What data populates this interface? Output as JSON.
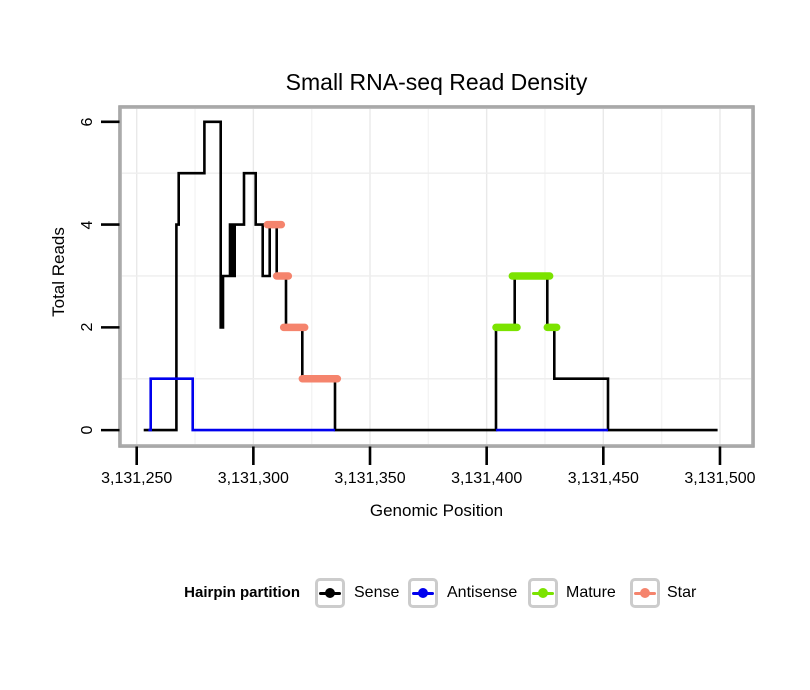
{
  "title": "Small RNA-seq Read Density",
  "axes": {
    "x": {
      "label": "Genomic Position",
      "tick_labels": [
        "3,131,250",
        "3,131,300",
        "3,131,350",
        "3,131,400",
        "3,131,450",
        "3,131,500"
      ]
    },
    "y": {
      "label": "Total Reads",
      "tick_labels": [
        "0",
        "2",
        "4",
        "6"
      ]
    }
  },
  "legend": {
    "title": "Hairpin partition",
    "items": [
      {
        "label": "Sense",
        "color": "#000000"
      },
      {
        "label": "Antisense",
        "color": "#0000EE"
      },
      {
        "label": "Mature",
        "color": "#7BE300"
      },
      {
        "label": "Star",
        "color": "#F5846D"
      }
    ]
  },
  "chart_data": {
    "type": "line",
    "subtype": "step-coverage",
    "title": "Small RNA-seq Read Density",
    "xlabel": "Genomic Position",
    "ylabel": "Total Reads",
    "xlim": [
      3131243.7,
      3131513.3
    ],
    "ylim": [
      -0.27,
      6.25
    ],
    "grid": {
      "h_lines": [
        1,
        3,
        5
      ],
      "v_line_step_bp": 25,
      "color": "#eeeeee"
    },
    "x_ticks": {
      "values": [
        3131250,
        3131300,
        3131350,
        3131400,
        3131450,
        3131500
      ],
      "labels": [
        "3,131,250",
        "3,131,300",
        "3,131,350",
        "3,131,400",
        "3,131,450",
        "3,131,500"
      ]
    },
    "y_ticks": {
      "values": [
        0,
        2,
        4,
        6
      ],
      "labels": [
        "0",
        "2",
        "4",
        "6"
      ]
    },
    "series": [
      {
        "name": "Sense",
        "color": "#000000",
        "style": "step-line",
        "runs": [
          [
            3131253,
            3131267,
            0
          ],
          [
            3131267,
            3131268,
            4
          ],
          [
            3131268,
            3131279,
            5
          ],
          [
            3131279,
            3131286,
            6
          ],
          [
            3131286,
            3131287,
            2
          ],
          [
            3131287,
            3131290,
            3
          ],
          [
            3131290,
            3131291,
            4
          ],
          [
            3131291,
            3131292,
            3
          ],
          [
            3131292,
            3131296,
            4
          ],
          [
            3131296,
            3131301,
            5
          ],
          [
            3131301,
            3131304,
            4
          ],
          [
            3131304,
            3131307,
            3
          ],
          [
            3131307,
            3131310,
            4
          ],
          [
            3131310,
            3131314,
            3
          ],
          [
            3131314,
            3131321,
            2
          ],
          [
            3131321,
            3131335,
            1
          ],
          [
            3131335,
            3131404,
            0
          ],
          [
            3131404,
            3131412,
            2
          ],
          [
            3131412,
            3131426,
            3
          ],
          [
            3131426,
            3131429,
            2
          ],
          [
            3131429,
            3131452,
            1
          ],
          [
            3131452,
            3131499,
            0
          ]
        ]
      },
      {
        "name": "Antisense",
        "color": "#0000EE",
        "style": "step-line",
        "polylines": [
          [
            [
              3131255,
              3131256,
              0
            ],
            [
              3131256,
              3131274,
              1
            ],
            [
              3131274,
              3131335,
              0
            ]
          ],
          [
            [
              3131404,
              3131452,
              0
            ]
          ]
        ]
      },
      {
        "name": "Mature",
        "color": "#7BE300",
        "style": "segment-markers",
        "segments": [
          [
            3131404,
            3131413,
            2
          ],
          [
            3131411,
            3131427,
            3
          ],
          [
            3131426,
            3131430,
            2
          ]
        ]
      },
      {
        "name": "Star",
        "color": "#F5846D",
        "style": "segment-markers",
        "segments": [
          [
            3131306,
            3131312,
            4
          ],
          [
            3131310,
            3131315,
            3
          ],
          [
            3131313,
            3131322,
            2
          ],
          [
            3131321,
            3131336,
            1
          ]
        ]
      }
    ]
  }
}
